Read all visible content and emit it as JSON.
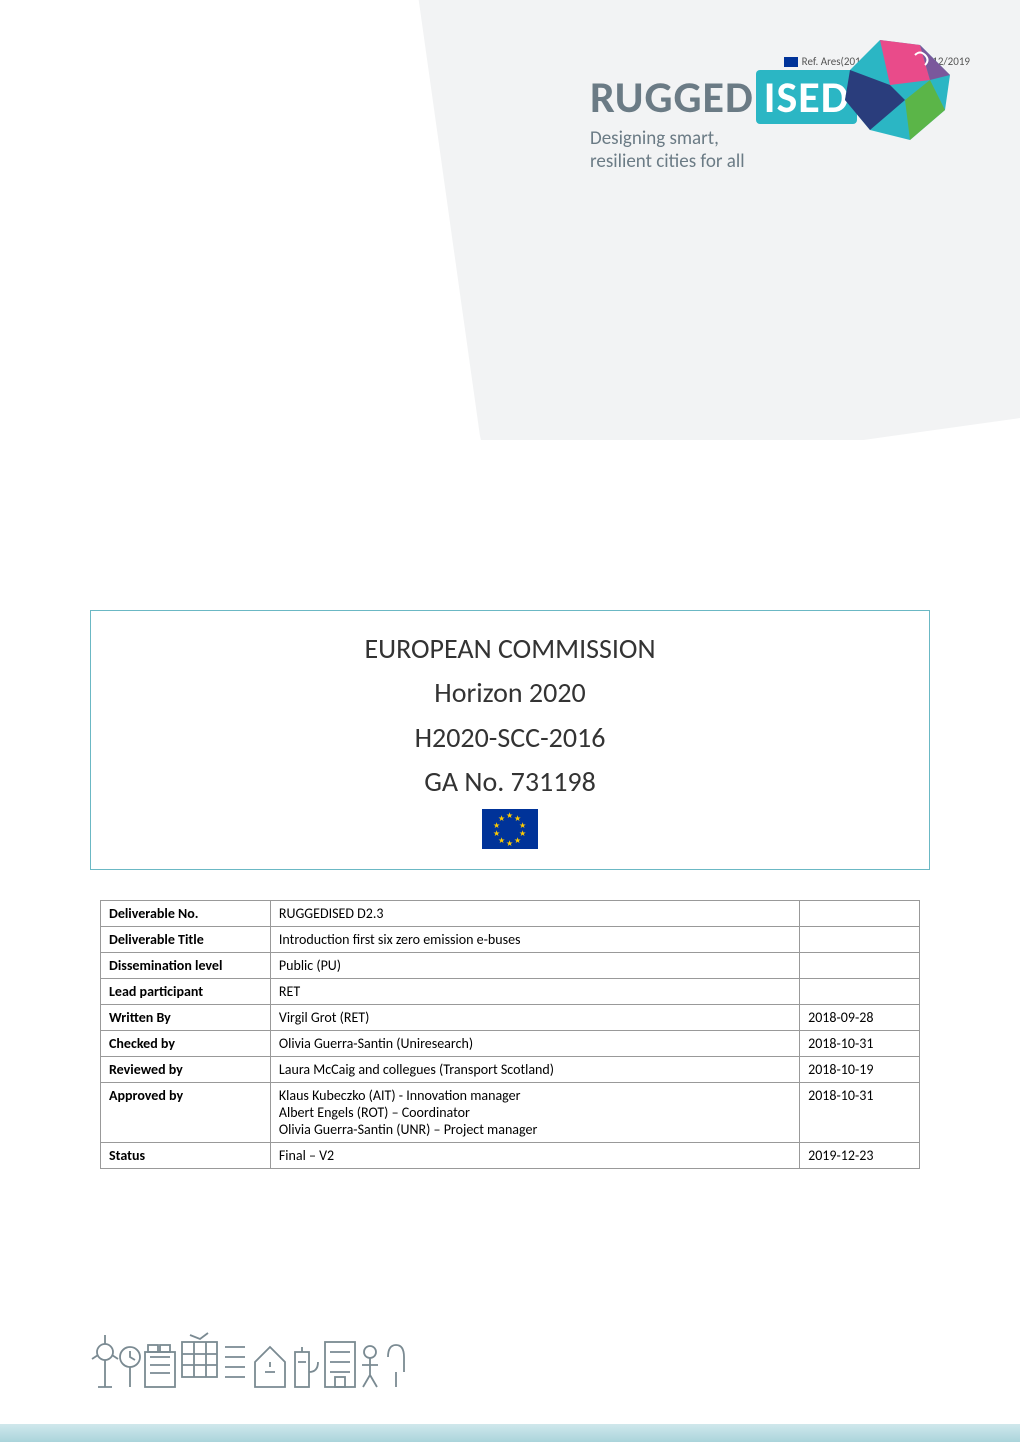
{
  "ref_badge": "Ref. Ares(2019)7908772 - 23/12/2019",
  "logo": {
    "part1": "RUGGED",
    "part2": "ISED",
    "tagline1": "Designing smart,",
    "tagline2": "resilient cities for all",
    "blob_colors": [
      "#2bb6c4",
      "#e94b8a",
      "#7a589c",
      "#5bb548",
      "#2a3d7c"
    ]
  },
  "header": {
    "line1": "EUROPEAN COMMISSION",
    "line2": "Horizon 2020",
    "line3": "H2020-SCC-2016",
    "line4": "GA No. 731198",
    "flag_bg": "#003399",
    "star_color": "#ffcc00"
  },
  "table": {
    "rows": [
      {
        "label": "Deliverable No.",
        "value": "RUGGEDISED D2.3",
        "date": ""
      },
      {
        "label": "Deliverable Title",
        "value": "Introduction first six zero emission e-buses",
        "date": ""
      },
      {
        "label": "Dissemination level",
        "value": "Public (PU)",
        "date": ""
      },
      {
        "label": "Lead participant",
        "value": "RET",
        "date": ""
      },
      {
        "label": "Written By",
        "value": "Virgil Grot (RET)",
        "date": "2018-09-28"
      },
      {
        "label": "Checked by",
        "value": "Olivia Guerra-Santin (Uniresearch)",
        "date": "2018-10-31"
      },
      {
        "label": "Reviewed by",
        "value": "Laura McCaig and collegues (Transport Scotland)",
        "date": "2018-10-19"
      },
      {
        "label": "Approved by",
        "value": "Klaus Kubeczko (AIT) - Innovation manager\nAlbert Engels (ROT) – Coordinator\nOlivia Guerra-Santin (UNR) – Project manager",
        "date": "2018-10-31"
      },
      {
        "label": "Status",
        "value": "Final – V2",
        "date": "2019-12-23"
      }
    ]
  },
  "colors": {
    "border_teal": "#6bb8c4",
    "gray_bg": "#f2f3f4",
    "logo_gray": "#6b7b85",
    "logo_teal": "#2bb6c4",
    "icon_stroke": "#7a8a92"
  }
}
